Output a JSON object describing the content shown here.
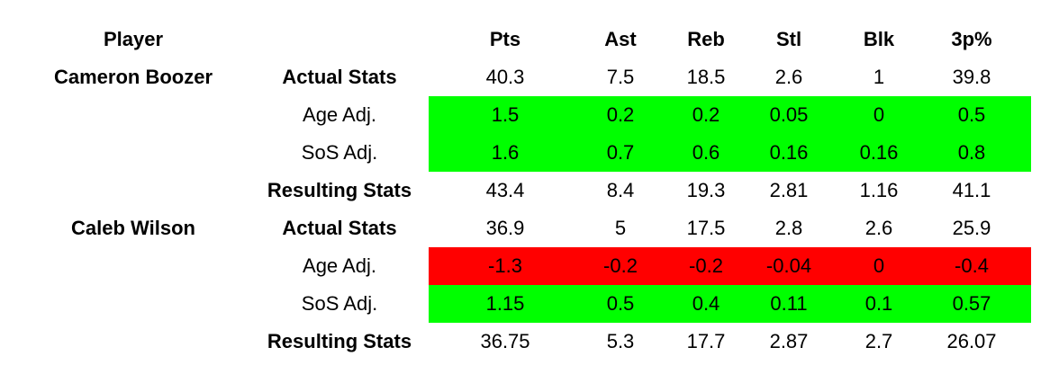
{
  "table": {
    "header": {
      "player": "Player",
      "stats": [
        "Pts",
        "Ast",
        "Reb",
        "Stl",
        "Blk",
        "3p%"
      ]
    },
    "players": [
      {
        "name": "Cameron Boozer",
        "rows": [
          {
            "label": "Actual Stats",
            "values": [
              40.3,
              7.5,
              18.5,
              2.6,
              1,
              39.8
            ]
          },
          {
            "label": "Age Adj.",
            "color": "#00ff00",
            "values": [
              1.5,
              0.2,
              0.2,
              0.05,
              0,
              0.5
            ]
          },
          {
            "label": "SoS Adj.",
            "color": "#00ff00",
            "values": [
              1.6,
              0.7,
              0.6,
              0.16,
              0.16,
              0.8
            ]
          },
          {
            "label": "Resulting Stats",
            "values": [
              43.4,
              8.4,
              19.3,
              2.81,
              1.16,
              41.1
            ]
          }
        ]
      },
      {
        "name": "Caleb Wilson",
        "rows": [
          {
            "label": "Actual Stats",
            "values": [
              36.9,
              5,
              17.5,
              2.8,
              2.6,
              25.9
            ]
          },
          {
            "label": "Age Adj.",
            "color": "#ff0000",
            "values": [
              -1.3,
              -0.2,
              -0.2,
              -0.04,
              0,
              -0.4
            ]
          },
          {
            "label": "SoS Adj.",
            "color": "#00ff00",
            "values": [
              1.15,
              0.5,
              0.4,
              0.11,
              0.1,
              0.57
            ]
          },
          {
            "label": "Resulting Stats",
            "values": [
              36.75,
              5.3,
              17.7,
              2.87,
              2.7,
              26.07
            ]
          }
        ]
      }
    ]
  }
}
